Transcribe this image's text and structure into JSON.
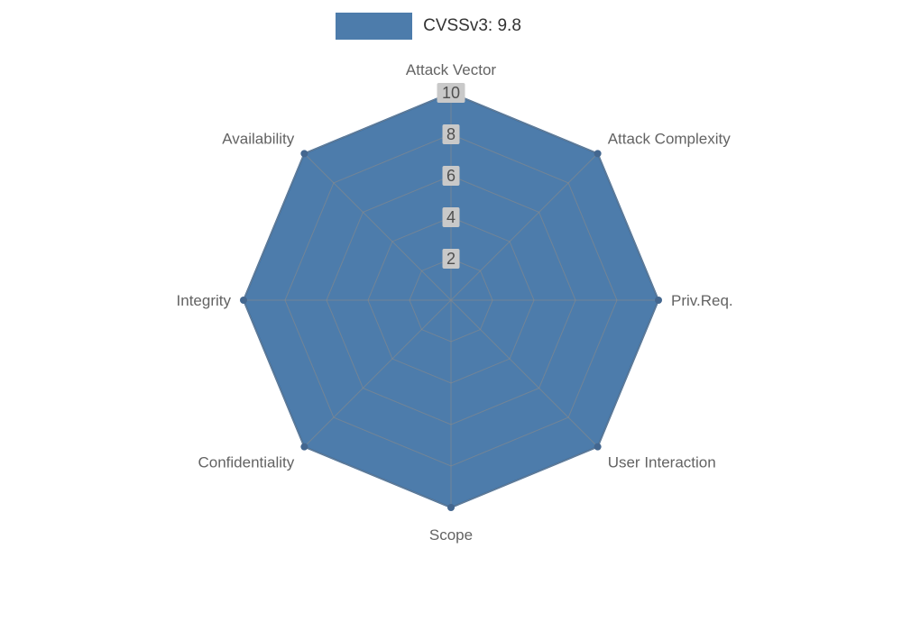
{
  "legend": {
    "label": "CVSSv3: 9.8"
  },
  "chart_data": {
    "type": "radar",
    "title": "CVSSv3: 9.8",
    "categories": [
      "Attack Vector",
      "Attack Complexity",
      "Priv.Req.",
      "User Interaction",
      "Scope",
      "Confidentiality",
      "Integrity",
      "Availability"
    ],
    "series": [
      {
        "name": "CVSSv3: 9.8",
        "values": [
          10,
          10,
          10,
          10,
          10,
          10,
          10,
          10
        ]
      }
    ],
    "ticks": [
      2,
      4,
      6,
      8,
      10
    ],
    "rmax": 10,
    "grid": true,
    "legend_position": "top",
    "colors": {
      "fill": "#4d7cab",
      "edge": "#3e6d9e",
      "marker": "#44678f",
      "grid": "#8a8a8a",
      "axis_label": "#636363",
      "tick_label": "#4f4f4f",
      "tick_bg": "#c9c9c9",
      "legend_text": "#333333",
      "background": "#ffffff"
    }
  }
}
